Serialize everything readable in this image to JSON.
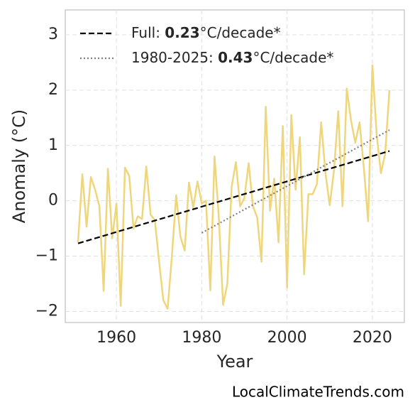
{
  "chart_data": {
    "type": "line",
    "xlabel": "Year",
    "ylabel": "Anomaly (°C)",
    "x": [
      1951,
      1952,
      1953,
      1954,
      1955,
      1956,
      1957,
      1958,
      1959,
      1960,
      1961,
      1962,
      1963,
      1964,
      1965,
      1966,
      1967,
      1968,
      1969,
      1970,
      1971,
      1972,
      1973,
      1974,
      1975,
      1976,
      1977,
      1978,
      1979,
      1980,
      1981,
      1982,
      1983,
      1984,
      1985,
      1986,
      1987,
      1988,
      1989,
      1990,
      1991,
      1992,
      1993,
      1994,
      1995,
      1996,
      1997,
      1998,
      1999,
      2000,
      2001,
      2002,
      2003,
      2004,
      2005,
      2006,
      2007,
      2008,
      2009,
      2010,
      2011,
      2012,
      2013,
      2014,
      2015,
      2016,
      2017,
      2018,
      2019,
      2020,
      2021,
      2022,
      2023,
      2024
    ],
    "series": [
      {
        "color": "#f0d67a",
        "values": [
          -0.75,
          0.48,
          -0.47,
          0.43,
          0.2,
          -0.1,
          -1.63,
          0.58,
          -0.68,
          -0.05,
          -1.9,
          0.6,
          0.45,
          -0.5,
          -0.28,
          -0.33,
          0.62,
          -0.25,
          -0.35,
          -1.1,
          -1.8,
          -1.95,
          -1.0,
          0.1,
          -0.65,
          -0.9,
          0.33,
          -0.12,
          0.35,
          -0.05,
          0.0,
          -1.62,
          0.8,
          -0.3,
          -1.88,
          -1.5,
          0.25,
          0.7,
          -0.1,
          0.05,
          0.68,
          -0.1,
          -0.3,
          -1.1,
          1.7,
          -0.18,
          0.4,
          -0.75,
          1.35,
          -1.57,
          1.55,
          0.2,
          1.15,
          -1.33,
          0.12,
          0.12,
          0.3,
          1.42,
          0.5,
          -0.08,
          0.55,
          1.62,
          -0.1,
          2.03,
          1.45,
          1.05,
          1.42,
          0.6,
          -0.37,
          2.45,
          1.2,
          0.5,
          0.85,
          2.0
        ]
      }
    ],
    "trends": [
      {
        "name_parts": [
          "Full: ",
          "0.23",
          "°C/decade*"
        ],
        "color": "#000000",
        "style": "dashed",
        "x": [
          1951,
          2024
        ],
        "values": [
          -0.77,
          0.9
        ]
      },
      {
        "name_parts": [
          "1980-2025: ",
          "0.43",
          "°C/decade*"
        ],
        "color": "#808080",
        "style": "dotted",
        "x": [
          1980,
          2024
        ],
        "values": [
          -0.58,
          1.28
        ]
      }
    ],
    "xlim": [
      1948,
      2027.5
    ],
    "xticks": [
      1960,
      1980,
      2000,
      2020
    ],
    "ylim": [
      -2.2,
      3.45
    ],
    "yticks": [
      {
        "value": -2,
        "label": "−2"
      },
      {
        "value": -1,
        "label": "−1"
      },
      0,
      1,
      2,
      3
    ],
    "grid": true,
    "legend": "upper left",
    "footer": "LocalClimateTrends.com"
  }
}
